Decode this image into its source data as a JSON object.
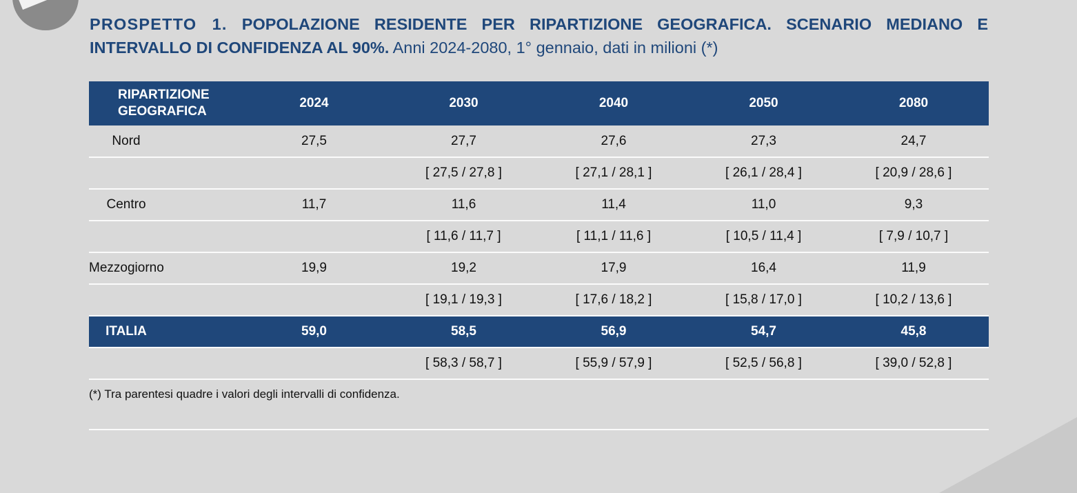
{
  "title": {
    "prefix": "PROSPETTO 1.",
    "main": "POPOLAZIONE RESIDENTE PER RIPARTIZIONE GEOGRAFICA. SCENARIO MEDIANO E INTERVALLO DI CONFIDENZA AL 90%.",
    "rest": "Anni 2024-2080, 1° gennaio, dati in milioni (*)"
  },
  "table": {
    "header": {
      "region_line1": "RIPARTIZIONE",
      "region_line2": "GEOGRAFICA",
      "years": [
        "2024",
        "2030",
        "2040",
        "2050",
        "2080"
      ]
    },
    "rows": [
      {
        "region": "Nord",
        "values": [
          "27,5",
          "27,7",
          "27,6",
          "27,3",
          "24,7"
        ],
        "ci": [
          "",
          "[ 27,5 / 27,8 ]",
          "[ 27,1 / 28,1 ]",
          "[ 26,1 / 28,4 ]",
          "[ 20,9 / 28,6 ]"
        ]
      },
      {
        "region": "Centro",
        "values": [
          "11,7",
          "11,6",
          "11,4",
          "11,0",
          "9,3"
        ],
        "ci": [
          "",
          "[ 11,6 / 11,7 ]",
          "[ 11,1 / 11,6 ]",
          "[ 10,5 / 11,4 ]",
          "[ 7,9 / 10,7 ]"
        ]
      },
      {
        "region": "Mezzogiorno",
        "values": [
          "19,9",
          "19,2",
          "17,9",
          "16,4",
          "11,9"
        ],
        "ci": [
          "",
          "[ 19,1 / 19,3 ]",
          "[ 17,6 / 18,2 ]",
          "[ 15,8 / 17,0 ]",
          "[ 10,2 / 13,6 ]"
        ]
      }
    ],
    "total": {
      "region": "ITALIA",
      "values": [
        "59,0",
        "58,5",
        "56,9",
        "54,7",
        "45,8"
      ],
      "ci": [
        "",
        "[ 58,3 / 58,7 ]",
        "[ 55,9 / 57,9 ]",
        "[ 52,5 / 56,8 ]",
        "[ 39,0 / 52,8 ]"
      ]
    }
  },
  "footnote": "(*) Tra parentesi quadre i valori degli intervalli di confidenza.",
  "colors": {
    "accent": "#1f477a",
    "background": "#d9d9d9"
  }
}
